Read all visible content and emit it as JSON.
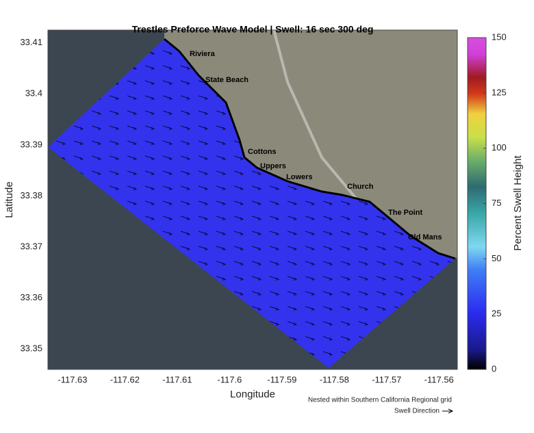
{
  "chart_data": {
    "type": "map",
    "title": "Trestles Preforce Wave Model | Swell: 16 sec 300 deg",
    "x_label": "Longitude",
    "y_label": "Latitude",
    "xlim": [
      -117.6347,
      -117.5565
    ],
    "xticks": [
      -117.63,
      -117.62,
      -117.61,
      -117.6,
      -117.59,
      -117.58,
      -117.57,
      -117.56
    ],
    "ylim": [
      33.346,
      33.4125
    ],
    "yticks": [
      33.35,
      33.36,
      33.37,
      33.38,
      33.39,
      33.4,
      33.41
    ],
    "colorbar": {
      "label": "Percent Swell Height",
      "lim": [
        0,
        150
      ],
      "ticks": [
        0,
        25,
        50,
        75,
        100,
        125,
        150
      ]
    },
    "places": [
      "Riviera",
      "State Beach",
      "Cottons",
      "Uppers",
      "Lowers",
      "Church",
      "The Point",
      "Old Mans"
    ],
    "footnote": "Nested within Southern California Regional grid",
    "legend_text": "Swell Direction"
  }
}
